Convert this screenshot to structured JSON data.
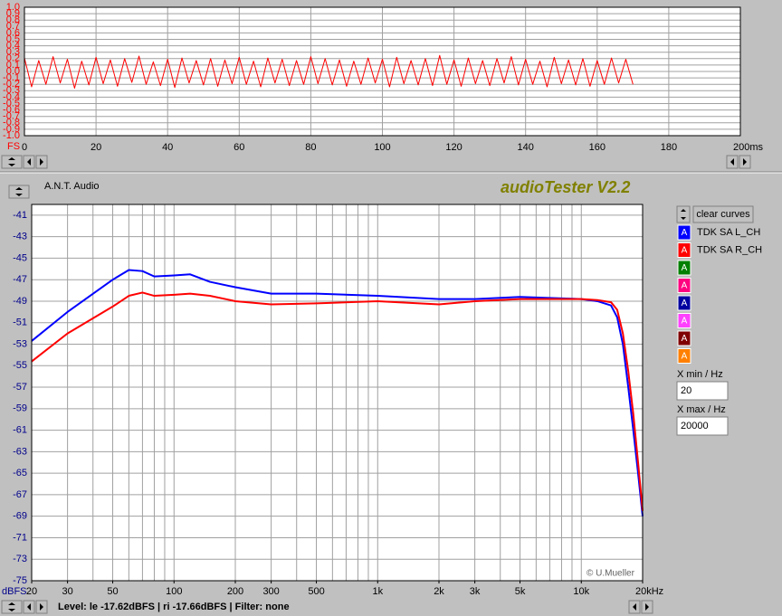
{
  "chart_data": [
    {
      "type": "line",
      "y_unit": "FS",
      "xlim": [
        0,
        200
      ],
      "ylim": [
        -1,
        1
      ],
      "xticks": [
        0,
        20,
        40,
        60,
        80,
        100,
        120,
        140,
        160,
        180,
        {
          "value": 200,
          "label": "200ms"
        }
      ],
      "yticks": [
        {
          "value": 1,
          "label": "1.0"
        },
        {
          "value": 0.9,
          "label": "0.9"
        },
        {
          "value": 0.8,
          "label": "0.8"
        },
        {
          "value": 0.7,
          "label": "0.7"
        },
        {
          "value": 0.6,
          "label": "0.6"
        },
        {
          "value": 0.5,
          "label": "0.5"
        },
        {
          "value": 0.4,
          "label": "0.4"
        },
        {
          "value": 0.3,
          "label": "0.3"
        },
        {
          "value": 0.2,
          "label": "0.2"
        },
        {
          "value": 0.1,
          "label": "0.1"
        },
        {
          "value": 0,
          "label": "0.0"
        },
        {
          "value": -0.1,
          "label": "-0.1"
        },
        {
          "value": -0.2,
          "label": "-0.2"
        },
        {
          "value": -0.3,
          "label": "-0.3"
        },
        {
          "value": -0.4,
          "label": "-0.4"
        },
        {
          "value": -0.5,
          "label": "-0.5"
        },
        {
          "value": -0.6,
          "label": "-0.6"
        },
        {
          "value": -0.7,
          "label": "-0.7"
        },
        {
          "value": -0.8,
          "label": "-0.8"
        },
        {
          "value": -0.9,
          "label": "-0.9"
        },
        {
          "value": -1,
          "label": "-1.0"
        }
      ],
      "grid": true,
      "x": [
        0,
        2,
        4,
        6,
        8,
        10,
        12,
        14,
        16,
        18,
        20,
        22,
        24,
        26,
        28,
        30,
        32,
        34,
        36,
        38,
        40,
        42,
        44,
        46,
        48,
        50,
        52,
        54,
        56,
        58,
        60,
        62,
        64,
        66,
        68,
        70,
        72,
        74,
        76,
        78,
        80,
        82,
        84,
        86,
        88,
        90,
        92,
        94,
        96,
        98,
        100,
        102,
        104,
        106,
        108,
        110,
        112,
        114,
        116,
        118,
        120,
        122,
        124,
        126,
        128,
        130,
        132,
        134,
        136,
        138,
        140,
        142,
        144,
        146,
        148,
        150,
        152,
        154,
        156,
        158,
        160,
        162,
        164,
        166,
        168,
        170
      ],
      "series": [
        {
          "color": "#ff0000",
          "values": [
            0.21,
            -0.24,
            0.17,
            -0.2,
            0.23,
            -0.18,
            0.19,
            -0.26,
            0.16,
            -0.21,
            0.22,
            -0.19,
            0.18,
            -0.23,
            0.2,
            -0.17,
            0.24,
            -0.2,
            0.15,
            -0.22,
            0.19,
            -0.25,
            0.21,
            -0.18,
            0.17,
            -0.21,
            0.2,
            -0.23,
            0.18,
            -0.19,
            0.22,
            -0.2,
            0.16,
            -0.24,
            0.21,
            -0.18,
            0.19,
            -0.22,
            0.17,
            -0.2,
            0.23,
            -0.19,
            0.2,
            -0.21,
            0.18,
            -0.23,
            0.16,
            -0.2,
            0.21,
            -0.18,
            0.19,
            -0.24,
            0.22,
            -0.19,
            0.17,
            -0.21,
            0.2,
            -0.22,
            0.25,
            -0.2,
            0.18,
            -0.23,
            0.21,
            -0.19,
            0.17,
            -0.22,
            0.2,
            -0.18,
            0.23,
            -0.21,
            0.19,
            -0.2,
            0.16,
            -0.24,
            0.22,
            -0.19,
            0.18,
            -0.21,
            0.2,
            -0.23,
            0.17,
            -0.2,
            0.21,
            -0.18,
            0.19,
            -0.2
          ]
        }
      ]
    },
    {
      "type": "line",
      "y_unit": "dBFS",
      "log_x": true,
      "xlim": [
        20,
        20000
      ],
      "ylim": [
        -75,
        -40
      ],
      "xticks": [
        20,
        30,
        50,
        100,
        200,
        300,
        500,
        {
          "value": 1000,
          "label": "1k"
        },
        {
          "value": 2000,
          "label": "2k"
        },
        {
          "value": 3000,
          "label": "3k"
        },
        {
          "value": 5000,
          "label": "5k"
        },
        {
          "value": 10000,
          "label": "10k"
        },
        {
          "value": 20000,
          "label": "20kHz"
        }
      ],
      "xminor": [
        20,
        30,
        40,
        50,
        60,
        70,
        80,
        90,
        100,
        200,
        300,
        400,
        500,
        600,
        700,
        800,
        900,
        1000,
        2000,
        3000,
        4000,
        5000,
        6000,
        7000,
        8000,
        9000,
        10000,
        20000
      ],
      "yticks": [
        -41,
        -43,
        -45,
        -47,
        -49,
        -51,
        -53,
        -55,
        -57,
        -59,
        -61,
        -63,
        -65,
        -67,
        -69,
        -71,
        -73,
        -75
      ],
      "grid": true,
      "x": [
        20,
        30,
        50,
        60,
        70,
        80,
        100,
        120,
        150,
        200,
        300,
        500,
        1000,
        2000,
        3000,
        5000,
        10000,
        12000,
        14000,
        15000,
        16000,
        17000,
        18000,
        19000,
        20000
      ],
      "series": [
        {
          "name": "TDK SA L_CH",
          "color": "#0000ff",
          "values": [
            -52.7,
            -50,
            -47,
            -46.1,
            -46.2,
            -46.7,
            -46.6,
            -46.5,
            -47.2,
            -47.7,
            -48.3,
            -48.3,
            -48.5,
            -48.8,
            -48.8,
            -48.6,
            -48.8,
            -49,
            -49.4,
            -50.5,
            -53,
            -57,
            -61,
            -65,
            -69
          ]
        },
        {
          "name": "TDK SA R_CH",
          "color": "#ff0000",
          "values": [
            -54.6,
            -52,
            -49.5,
            -48.5,
            -48.2,
            -48.5,
            -48.4,
            -48.3,
            -48.5,
            -49,
            -49.3,
            -49.2,
            -49,
            -49.3,
            -49,
            -48.8,
            -48.8,
            -48.9,
            -49.1,
            -49.8,
            -52,
            -55.5,
            -59.5,
            -64,
            -68.5
          ]
        }
      ]
    }
  ],
  "ui": {
    "company": "A.N.T. Audio",
    "app_title": "audioTester V2.2",
    "clear_button": "clear curves",
    "curve_buttons": [
      "A",
      "A",
      "A",
      "A",
      "A",
      "A",
      "A",
      "A"
    ],
    "xmin_label": "X min / Hz",
    "xmin_value": "20",
    "xmax_label": "X max / Hz",
    "xmax_value": "20000",
    "watermark": "© U.Mueller",
    "status": "Level: le -17.62dBFS | ri -17.66dBFS | Filter: none"
  }
}
